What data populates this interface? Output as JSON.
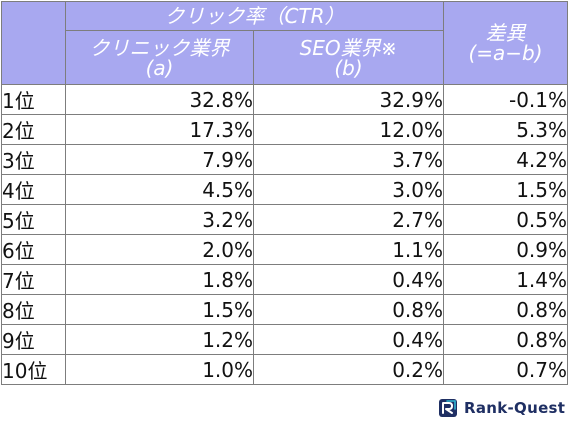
{
  "header": {
    "ctr_group": "クリック率（CTR）",
    "diff_line1": "差異",
    "diff_line2": "(=a−b)",
    "col_a_line1": "クリニック業界",
    "col_a_line2": "(a)",
    "col_b_line1": "SEO業界※",
    "col_b_line2": "(b)"
  },
  "rows": [
    {
      "rank": "1位",
      "a": "32.8%",
      "b": "32.9%",
      "diff": "-0.1%"
    },
    {
      "rank": "2位",
      "a": "17.3%",
      "b": "12.0%",
      "diff": "5.3%"
    },
    {
      "rank": "3位",
      "a": "7.9%",
      "b": "3.7%",
      "diff": "4.2%"
    },
    {
      "rank": "4位",
      "a": "4.5%",
      "b": "3.0%",
      "diff": "1.5%"
    },
    {
      "rank": "5位",
      "a": "3.2%",
      "b": "2.7%",
      "diff": "0.5%"
    },
    {
      "rank": "6位",
      "a": "2.0%",
      "b": "1.1%",
      "diff": "0.9%"
    },
    {
      "rank": "7位",
      "a": "1.8%",
      "b": "0.4%",
      "diff": "1.4%"
    },
    {
      "rank": "8位",
      "a": "1.5%",
      "b": "0.8%",
      "diff": "0.8%"
    },
    {
      "rank": "9位",
      "a": "1.2%",
      "b": "0.4%",
      "diff": "0.8%"
    },
    {
      "rank": "10位",
      "a": "1.0%",
      "b": "0.2%",
      "diff": "0.7%"
    }
  ],
  "logo": {
    "text": "Rank-Quest",
    "icon": "rank-quest-logo-icon",
    "color": "#1f2f63"
  },
  "colors": {
    "header_bg": "#a8a8f0",
    "header_text": "#ffffff",
    "border": "#7d7d7d"
  }
}
